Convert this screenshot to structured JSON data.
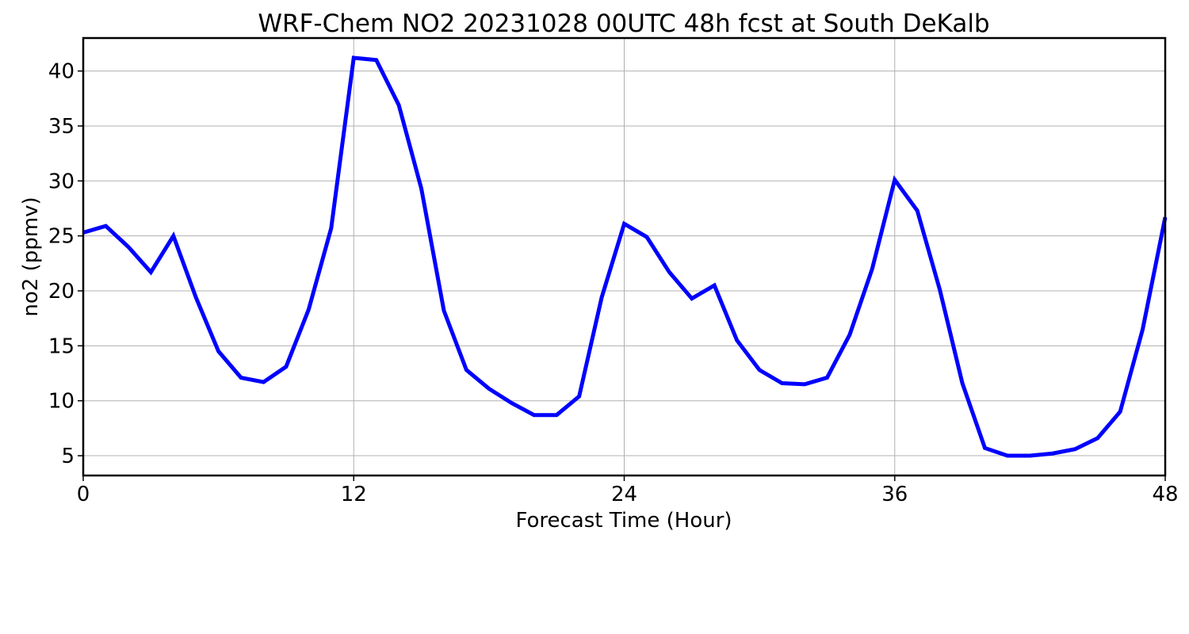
{
  "chart_data": {
    "type": "line",
    "title": "WRF-Chem NO2  20231028 00UTC 48h fcst at South DeKalb",
    "xlabel": "Forecast Time (Hour)",
    "ylabel": "no2  (ppmv)",
    "xlim": [
      0,
      48
    ],
    "ylim": [
      3.2,
      43
    ],
    "xticks": [
      0,
      12,
      24,
      36,
      48
    ],
    "yticks": [
      5,
      10,
      15,
      20,
      25,
      30,
      35,
      40
    ],
    "grid": true,
    "series": [
      {
        "color": "#0000ff",
        "x": [
          0,
          1,
          2,
          3,
          4,
          5,
          6,
          7,
          8,
          9,
          10,
          11,
          12,
          13,
          14,
          15,
          16,
          17,
          18,
          19,
          20,
          21,
          22,
          23,
          24,
          25,
          26,
          27,
          28,
          29,
          30,
          31,
          32,
          33,
          34,
          35,
          36,
          37,
          38,
          39,
          40,
          41,
          42,
          43,
          44,
          45,
          46,
          47,
          48
        ],
        "values": [
          25.3,
          25.9,
          24.0,
          21.7,
          25.0,
          19.4,
          14.5,
          12.1,
          11.7,
          13.1,
          18.3,
          25.7,
          41.2,
          41.0,
          36.9,
          29.3,
          18.2,
          12.8,
          11.1,
          9.8,
          8.7,
          8.7,
          10.4,
          19.4,
          26.1,
          24.9,
          21.7,
          19.3,
          20.5,
          15.5,
          12.8,
          11.6,
          11.5,
          12.1,
          16.0,
          22.0,
          30.1,
          27.3,
          20.1,
          11.6,
          5.7,
          5.0,
          5.0,
          5.2,
          5.6,
          6.6,
          9.0,
          16.5,
          26.7
        ]
      }
    ]
  }
}
